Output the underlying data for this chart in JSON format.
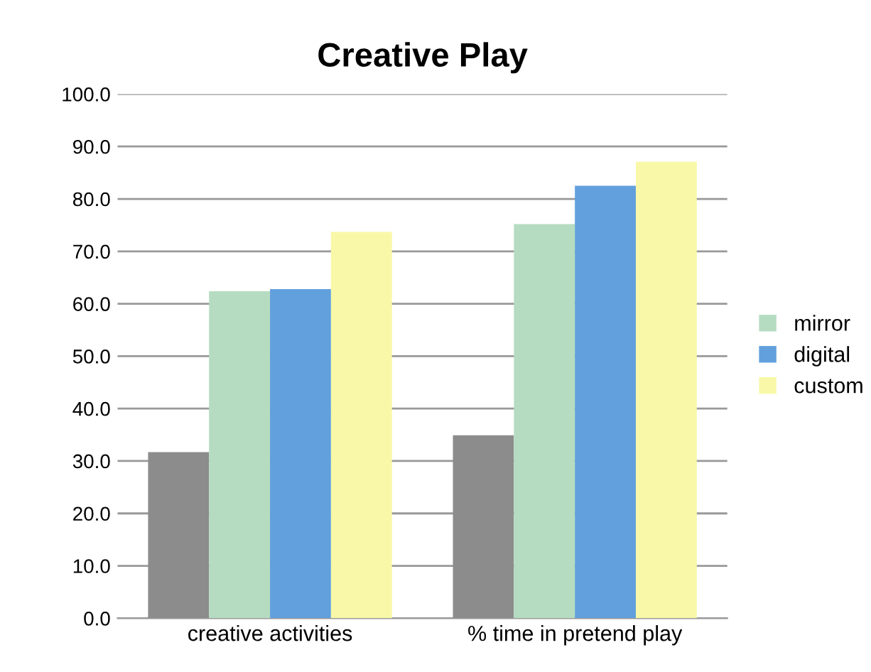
{
  "chart_data": {
    "type": "bar",
    "title": "Creative Play",
    "categories": [
      "creative activities",
      "% time in pretend play"
    ],
    "series": [
      {
        "color": "#8c8c8c",
        "values": [
          31.7,
          34.9
        ]
      },
      {
        "name": "mirror",
        "color": "#b5dcc0",
        "values": [
          62.4,
          75.2
        ]
      },
      {
        "name": "digital",
        "color": "#62a0dd",
        "values": [
          62.8,
          82.5
        ]
      },
      {
        "name": "custom",
        "color": "#f8f8a8",
        "values": [
          73.7,
          87.1
        ]
      }
    ],
    "ylim": [
      0,
      100
    ],
    "yticks": [
      {
        "value": 0,
        "label": "0.0"
      },
      {
        "value": 10,
        "label": "10.0"
      },
      {
        "value": 20,
        "label": "20.0"
      },
      {
        "value": 30,
        "label": "30.0"
      },
      {
        "value": 40,
        "label": "40.0"
      },
      {
        "value": 50,
        "label": "50.0"
      },
      {
        "value": 60,
        "label": "60.0"
      },
      {
        "value": 70,
        "label": "70.0"
      },
      {
        "value": 80,
        "label": "80.0"
      },
      {
        "value": 90,
        "label": "90.0"
      },
      {
        "value": 100,
        "label": "100.0"
      }
    ],
    "grid": "y",
    "legend": "right"
  }
}
